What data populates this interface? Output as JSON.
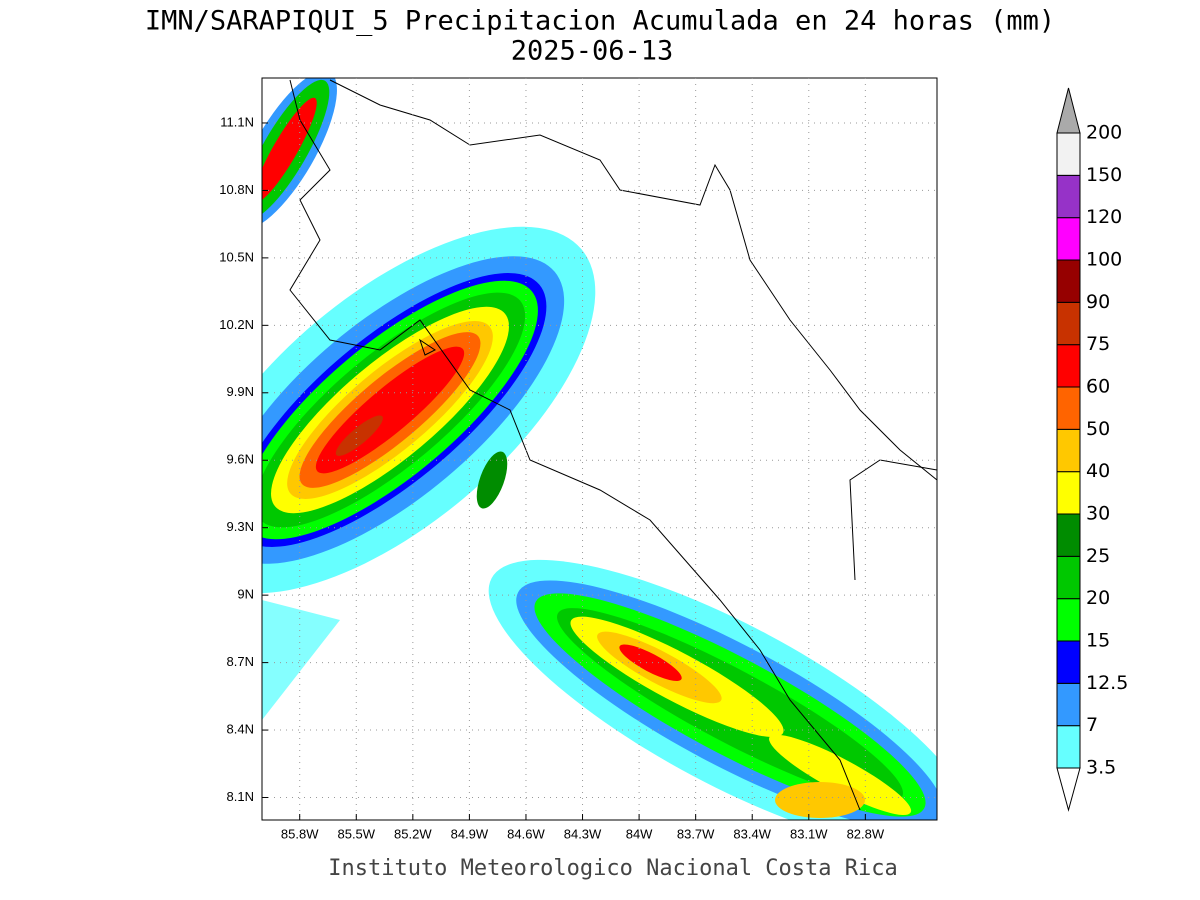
{
  "title": "IMN/SARAPIQUI_5 Precipitacion Acumulada en 24 horas (mm)",
  "subtitle": "2025-06-13",
  "footer": "Instituto Meteorologico Nacional Costa Rica",
  "map": {
    "lonlim": [
      -86.0,
      -82.42
    ],
    "latlim": [
      8.0,
      11.3
    ],
    "lon_ticks": [
      {
        "value": -85.8,
        "label": "85.8W"
      },
      {
        "value": -85.5,
        "label": "85.5W"
      },
      {
        "value": -85.2,
        "label": "85.2W"
      },
      {
        "value": -84.9,
        "label": "84.9W"
      },
      {
        "value": -84.6,
        "label": "84.6W"
      },
      {
        "value": -84.3,
        "label": "84.3W"
      },
      {
        "value": -84,
        "label": "84W"
      },
      {
        "value": -83.7,
        "label": "83.7W"
      },
      {
        "value": -83.4,
        "label": "83.4W"
      },
      {
        "value": -83.1,
        "label": "83.1W"
      },
      {
        "value": -82.8,
        "label": "82.8W"
      }
    ],
    "lat_ticks": [
      {
        "value": 11.1,
        "label": "11.1N"
      },
      {
        "value": 10.8,
        "label": "10.8N"
      },
      {
        "value": 10.5,
        "label": "10.5N"
      },
      {
        "value": 10.2,
        "label": "10.2N"
      },
      {
        "value": 9.9,
        "label": "9.9N"
      },
      {
        "value": 9.6,
        "label": "9.6N"
      },
      {
        "value": 9.3,
        "label": "9.3N"
      },
      {
        "value": 9,
        "label": "9N"
      },
      {
        "value": 8.7,
        "label": "8.7N"
      },
      {
        "value": 8.4,
        "label": "8.4N"
      },
      {
        "value": 8.1,
        "label": "8.1N"
      }
    ]
  },
  "colorbar": {
    "levels": [
      3.5,
      7,
      12.5,
      15,
      20,
      25,
      30,
      40,
      50,
      60,
      75,
      90,
      100,
      120,
      150,
      200
    ],
    "colors": [
      "#ffffff",
      "#66ffff",
      "#3399ff",
      "#0000ff",
      "#00ff00",
      "#00c800",
      "#008c00",
      "#ffff00",
      "#ffc800",
      "#ff6400",
      "#ff0000",
      "#c83200",
      "#960000",
      "#ff00ff",
      "#9632c8",
      "#f2f2f2",
      "#aaaaaa"
    ]
  }
}
